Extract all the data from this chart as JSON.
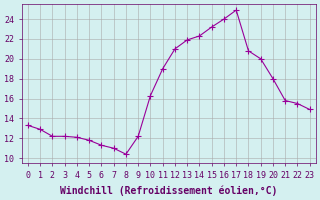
{
  "x": [
    0,
    1,
    2,
    3,
    4,
    5,
    6,
    7,
    8,
    9,
    10,
    11,
    12,
    13,
    14,
    15,
    16,
    17,
    18,
    19,
    20,
    21,
    22,
    23
  ],
  "y": [
    13.3,
    12.9,
    12.2,
    12.2,
    12.1,
    11.8,
    11.3,
    11.0,
    10.4,
    12.2,
    16.3,
    19.0,
    21.0,
    21.9,
    22.3,
    23.2,
    24.0,
    24.9,
    20.8,
    20.0,
    18.0,
    15.8,
    15.5,
    14.9
  ],
  "line_color": "#990099",
  "marker": "+",
  "bg_color": "#d4f0f0",
  "grid_color": "#aaaaaa",
  "axis_color": "#660066",
  "xlabel": "Windchill (Refroidissement éolien,°C)",
  "xlim": [
    -0.5,
    23.5
  ],
  "ylim": [
    9.5,
    25.5
  ],
  "yticks": [
    10,
    12,
    14,
    16,
    18,
    20,
    22,
    24
  ],
  "xticks": [
    0,
    1,
    2,
    3,
    4,
    5,
    6,
    7,
    8,
    9,
    10,
    11,
    12,
    13,
    14,
    15,
    16,
    17,
    18,
    19,
    20,
    21,
    22,
    23
  ],
  "label_fontsize": 7,
  "tick_fontsize": 6
}
